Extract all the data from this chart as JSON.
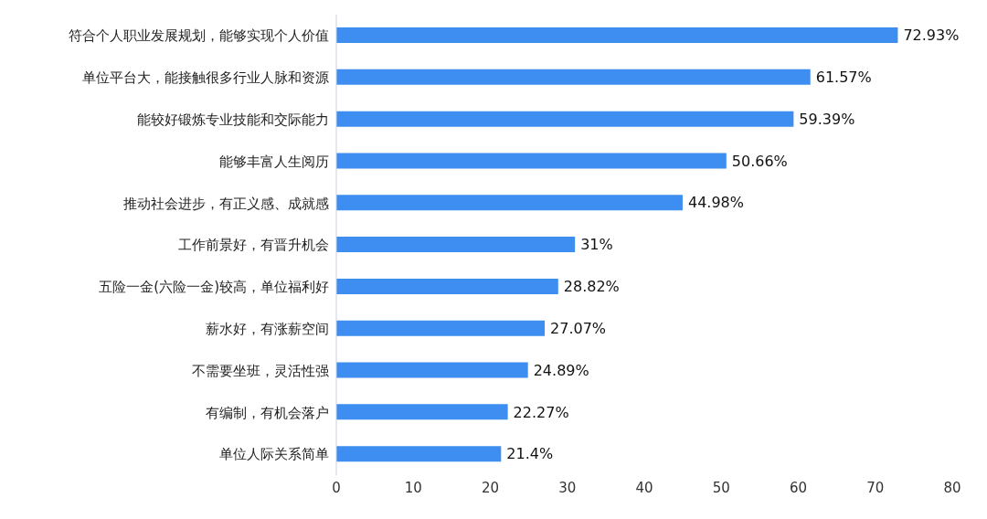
{
  "chart_data": {
    "type": "bar",
    "orientation": "horizontal",
    "categories": [
      "符合个人职业发展规划，能够实现个人价值",
      "单位平台大，能接触很多行业人脉和资源",
      "能较好锻炼专业技能和交际能力",
      "能够丰富人生阅历",
      "推动社会进步，有正义感、成就感",
      "工作前景好，有晋升机会",
      "五险一金(六险一金)较高，单位福利好",
      "薪水好，有涨薪空间",
      "不需要坐班，灵活性强",
      "有编制，有机会落户",
      "单位人际关系简单"
    ],
    "values": [
      72.93,
      61.57,
      59.39,
      50.66,
      44.98,
      31,
      28.82,
      27.07,
      24.89,
      22.27,
      21.4
    ],
    "value_labels": [
      "72.93%",
      "61.57%",
      "59.39%",
      "50.66%",
      "44.98%",
      "31%",
      "28.82%",
      "27.07%",
      "24.89%",
      "22.27%",
      "21.4%"
    ],
    "color": "#3d8ef0",
    "xlim": [
      0,
      80
    ],
    "xticks": [
      0,
      10,
      20,
      30,
      40,
      50,
      60,
      70,
      80
    ],
    "grid": false
  }
}
